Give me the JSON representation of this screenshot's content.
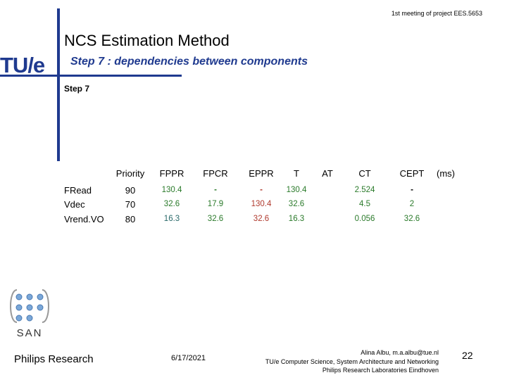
{
  "header": {
    "meeting": "1st meeting of project EES.5653",
    "title": "NCS Estimation Method",
    "subtitle": "Step 7 : dependencies between components",
    "logo": "TU/e"
  },
  "body": {
    "heading": "Step 7"
  },
  "table": {
    "columns": [
      "Priority",
      "FPPR",
      "FPCR",
      "EPPR",
      "T",
      "AT",
      "CT",
      "CEPT"
    ],
    "unit": "(ms)",
    "rows": [
      {
        "name": "FRead",
        "cells": [
          "90",
          "130.4",
          "-",
          "-",
          "130.4",
          null,
          "2.524",
          "-"
        ],
        "colors": [
          "#000000",
          "#2a7a2a",
          "#2a7a2a",
          "#b03a2e",
          "#2a7a2a",
          null,
          "#2a7a2a",
          "#000000"
        ]
      },
      {
        "name": "Vdec",
        "cells": [
          "70",
          "32.6",
          "17.9",
          "130.4",
          "32.6",
          null,
          "4.5",
          "2"
        ],
        "colors": [
          "#000000",
          "#2a7a2a",
          "#2a7a2a",
          "#b03a2e",
          "#2a7a2a",
          null,
          "#2a7a2a",
          "#2a7a2a"
        ]
      },
      {
        "name": "Vrend.VO",
        "cells": [
          "80",
          "16.3",
          "32.6",
          "32.6",
          "16.3",
          null,
          "0.056",
          "32.6"
        ],
        "colors": [
          "#000000",
          "#2a6a6a",
          "#2a7a2a",
          "#b03a2e",
          "#2a7a2a",
          null,
          "#2a7a2a",
          "#2a7a2a"
        ]
      }
    ]
  },
  "san_logo": "SAN",
  "footer": {
    "org": "Philips Research",
    "date": "6/17/2021",
    "contact": [
      "Alina Albu, m.a.albu@tue.nl",
      "TU/e Computer Science, System Architecture and Networking",
      "Philips Research Laboratories Eindhoven"
    ],
    "page": "22"
  }
}
